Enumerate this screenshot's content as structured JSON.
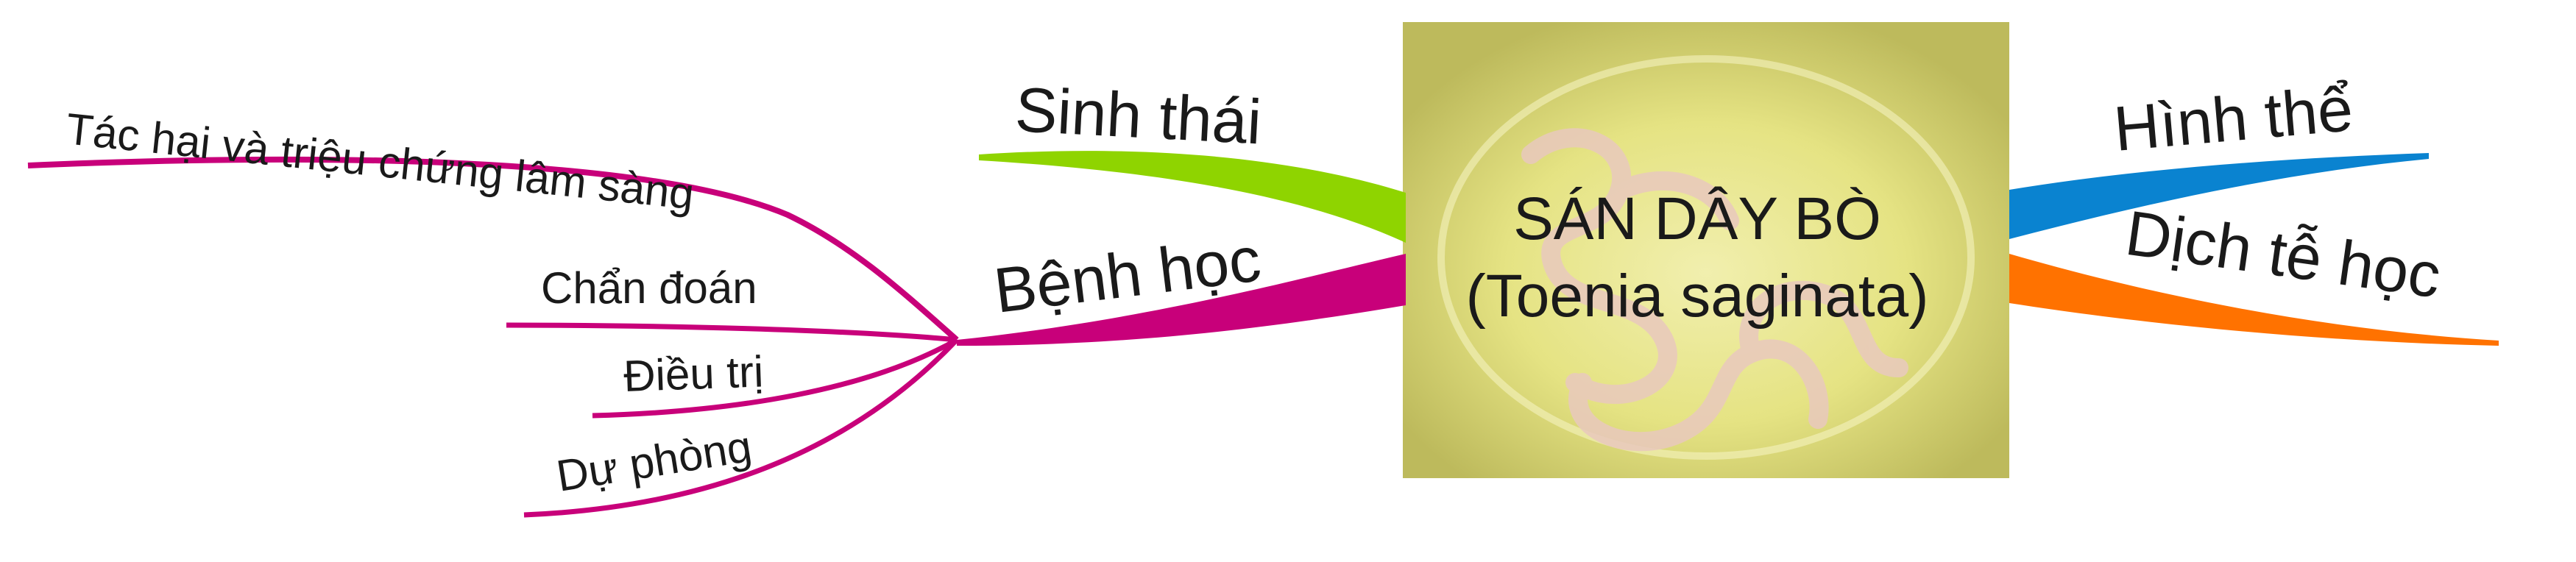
{
  "center": {
    "title_line1": "SÁN DÂY BÒ",
    "title_line2": "(Toenia saginata)"
  },
  "branches": {
    "sinh_thai": {
      "label": "Sinh thái",
      "color": "#8fd400"
    },
    "benh_hoc": {
      "label": "Bệnh học",
      "color": "#c8007a",
      "children": [
        {
          "label": "Tác hại và triệu chứng lâm sàng"
        },
        {
          "label": "Chẩn đoán"
        },
        {
          "label": "Điều trị"
        },
        {
          "label": "Dự phòng"
        }
      ]
    },
    "hinh_the": {
      "label": "Hình thể",
      "color": "#0a83d0"
    },
    "dich_te_hoc": {
      "label": "Dịch tễ học",
      "color": "#ff7200"
    }
  },
  "colors": {
    "image_bg": "#e2e07f",
    "image_border": "#b5b15e",
    "worm": "#e6c4b8"
  },
  "icons": {
    "center_image": "tapeworm-photo"
  }
}
